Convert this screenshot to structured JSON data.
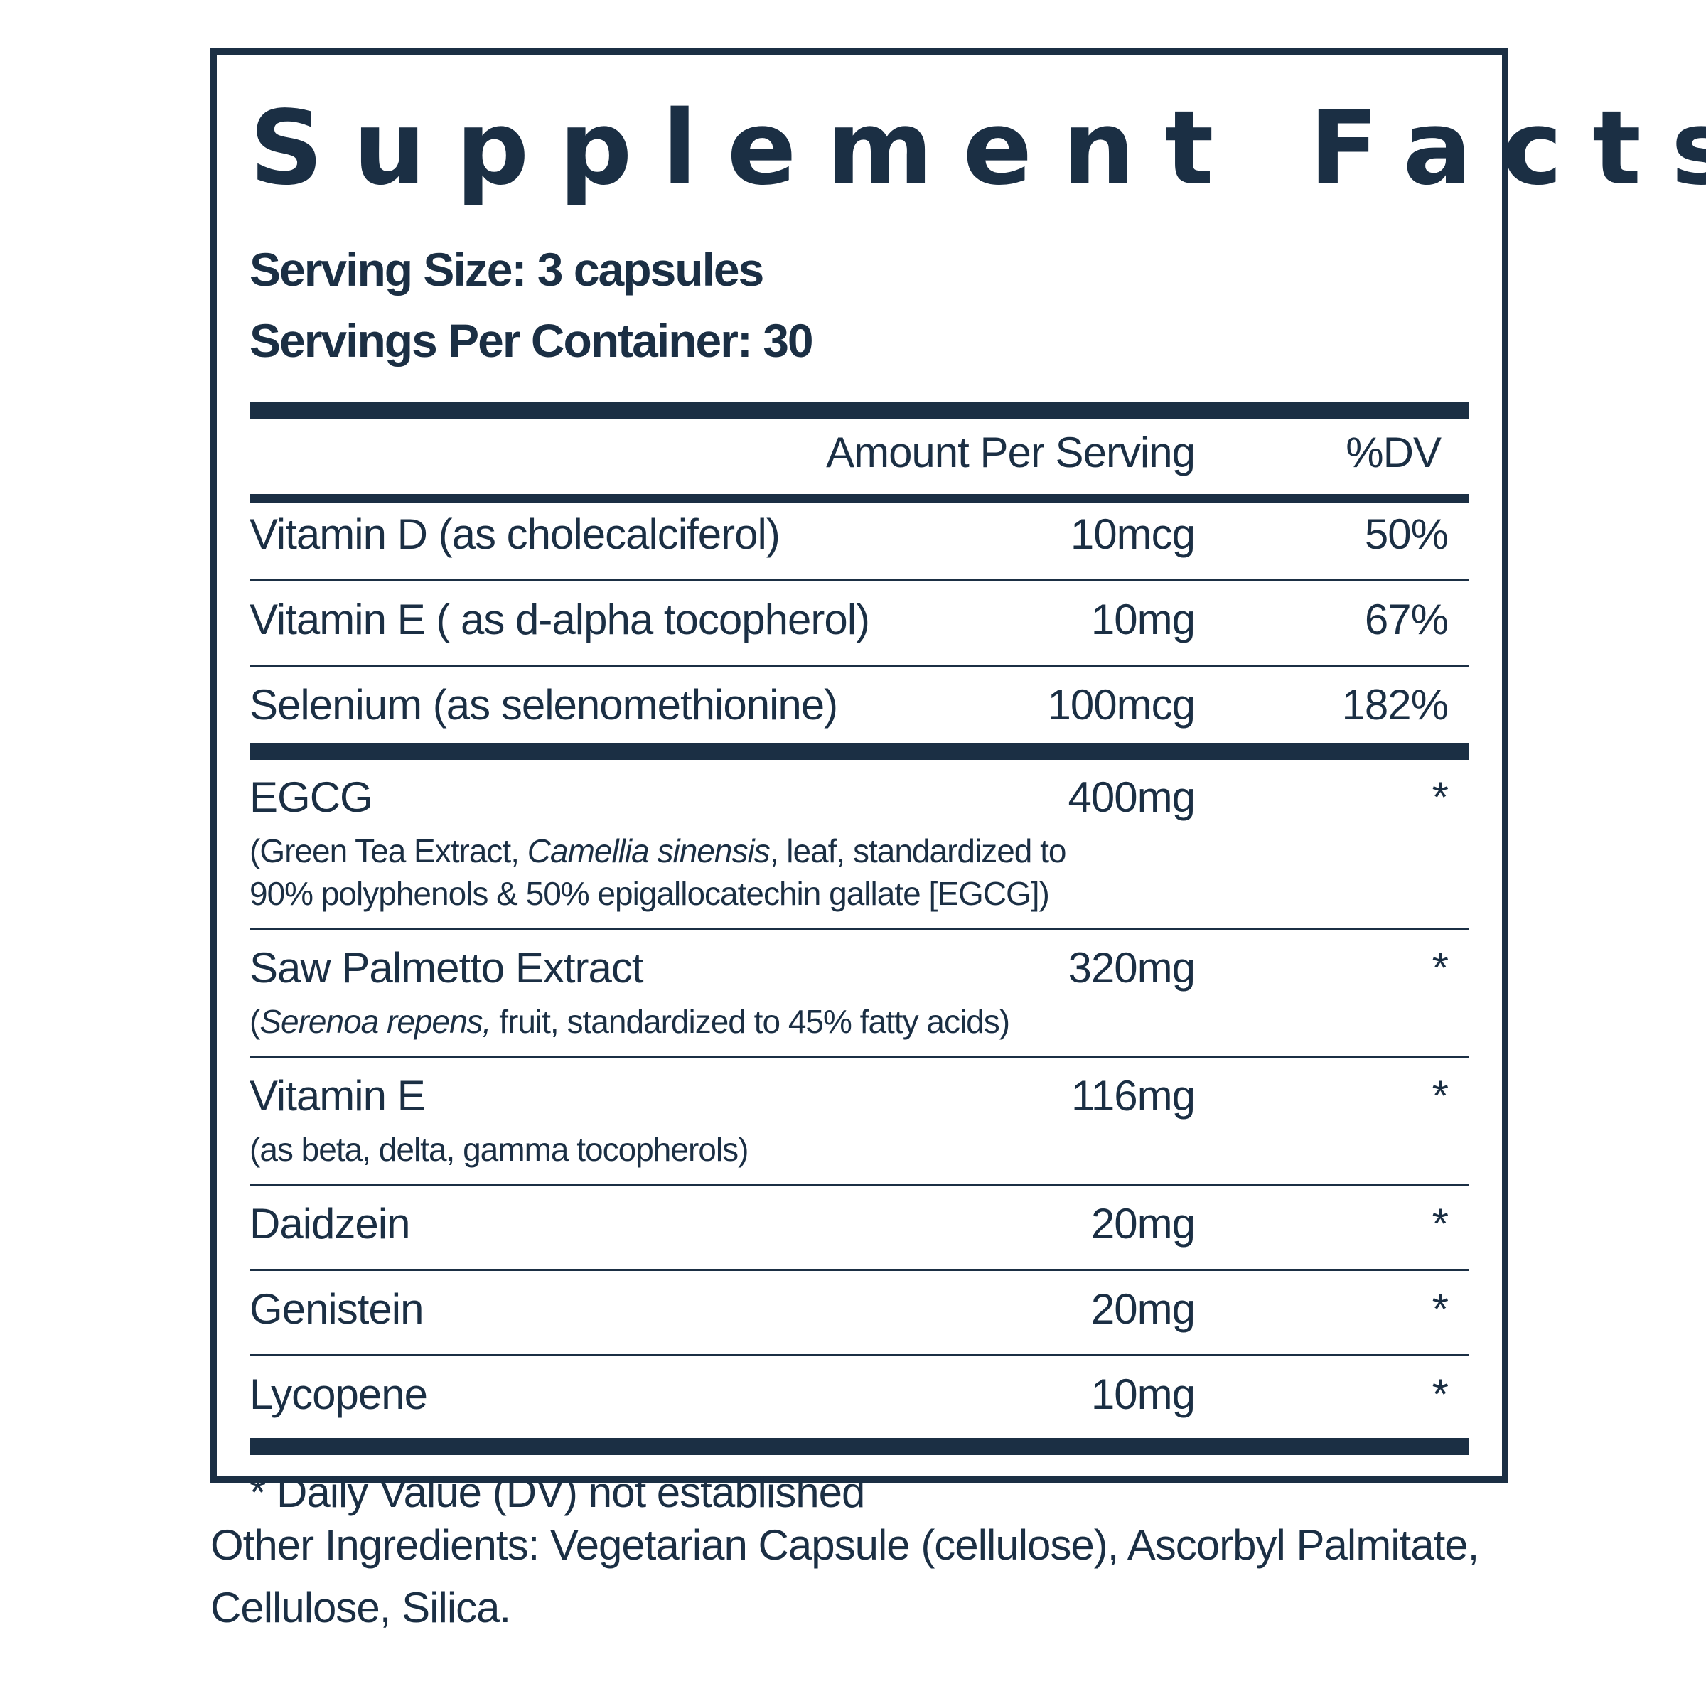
{
  "title": "Supplement Facts",
  "serving_size": "Serving Size: 3 capsules",
  "servings_per_container": "Servings Per Container: 30",
  "columns": {
    "amount": "Amount Per Serving",
    "dv": "%DV"
  },
  "vitamins": [
    {
      "name": "Vitamin D (as cholecalciferol)",
      "amount": "10mcg",
      "dv": "50%"
    },
    {
      "name": "Vitamin E ( as d-alpha tocopherol)",
      "amount": "10mg",
      "dv": "67%"
    },
    {
      "name": "Selenium (as selenomethionine)",
      "amount": "100mcg",
      "dv": "182%"
    }
  ],
  "ingredients": [
    {
      "name": "EGCG",
      "amount": "400mg",
      "dv": "*",
      "note1_pre": "(Green Tea Extract, ",
      "note1_italic": "Camellia sinensis",
      "note1_post": ", leaf, standardized to",
      "note2": " 90% polyphenols & 50% epigallocatechin gallate [EGCG])"
    },
    {
      "name": "Saw Palmetto Extract",
      "amount": "320mg",
      "dv": "*",
      "note_pre": "(",
      "note_italic": "Serenoa repens,",
      "note_post": " fruit, standardized to 45% fatty acids)"
    },
    {
      "name": "Vitamin E",
      "amount": "116mg",
      "dv": "*",
      "note": "(as beta, delta, gamma tocopherols)"
    },
    {
      "name": "Daidzein",
      "amount": "20mg",
      "dv": "*"
    },
    {
      "name": "Genistein",
      "amount": "20mg",
      "dv": "*"
    },
    {
      "name": "Lycopene",
      "amount": "10mg",
      "dv": "*"
    }
  ],
  "footnote": "* Daily Value (DV) not established",
  "other_ingredients": "Other Ingredients: Vegetarian Capsule (cellulose), Ascorbyl Palmitate, Cellulose, Silica.",
  "colors": {
    "ink": "#1b2f44",
    "background": "#ffffff"
  }
}
